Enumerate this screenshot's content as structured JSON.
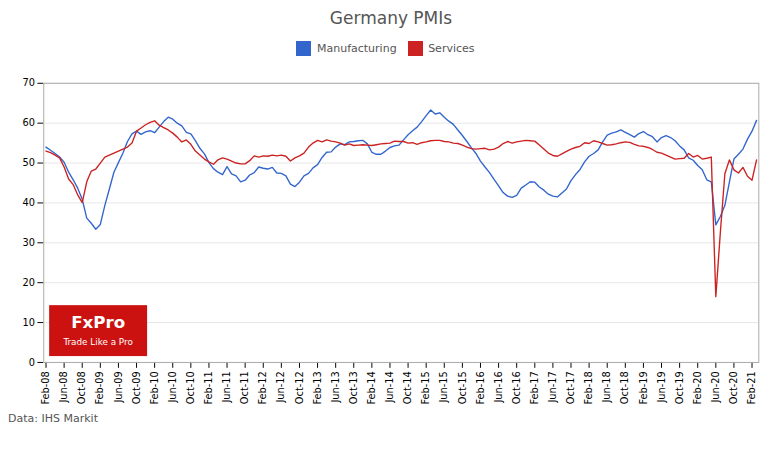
{
  "chart_data": {
    "type": "line",
    "title": "Germany PMIs",
    "caption": "Data: IHS Markit",
    "annotations": [
      "FxPro",
      "Trade Like a Pro"
    ],
    "categories": [
      "Feb-08",
      null,
      null,
      null,
      "Jun-08",
      null,
      null,
      null,
      "Oct-08",
      null,
      null,
      null,
      "Feb-09",
      null,
      null,
      null,
      "Jun-09",
      null,
      null,
      null,
      "Oct-09",
      null,
      null,
      null,
      "Feb-10",
      null,
      null,
      null,
      "Jun-10",
      null,
      null,
      null,
      "Oct-10",
      null,
      null,
      null,
      "Feb-11",
      null,
      null,
      null,
      "Jun-11",
      null,
      null,
      null,
      "Oct-11",
      null,
      null,
      null,
      "Feb-12",
      null,
      null,
      null,
      "Jun-12",
      null,
      null,
      null,
      "Oct-12",
      null,
      null,
      null,
      "Feb-13",
      null,
      null,
      null,
      "Jun-13",
      null,
      null,
      null,
      "Oct-13",
      null,
      null,
      null,
      "Feb-14",
      null,
      null,
      null,
      "Jun-14",
      null,
      null,
      null,
      "Oct-14",
      null,
      null,
      null,
      "Feb-15",
      null,
      null,
      null,
      "Jun-15",
      null,
      null,
      null,
      "Oct-15",
      null,
      null,
      null,
      "Feb-16",
      null,
      null,
      null,
      "Jun-16",
      null,
      null,
      null,
      "Oct-16",
      null,
      null,
      null,
      "Feb-17",
      null,
      null,
      null,
      "Jun-17",
      null,
      null,
      null,
      "Oct-17",
      null,
      null,
      null,
      "Feb-18",
      null,
      null,
      null,
      "Jun-18",
      null,
      null,
      null,
      "Oct-18",
      null,
      null,
      null,
      "Feb-19",
      null,
      null,
      null,
      "Jun-19",
      null,
      null,
      null,
      "Oct-19",
      null,
      null,
      null,
      "Feb-20",
      null,
      null,
      null,
      "Jun-20",
      null,
      null,
      null,
      "Oct-20",
      null,
      null,
      null,
      "Feb-21",
      null
    ],
    "series": [
      {
        "name": "Manufacturing",
        "color": "#3366CC",
        "values": [
          54.0,
          53.2,
          52.4,
          51.5,
          50.2,
          47.7,
          45.8,
          43.7,
          40.9,
          36.2,
          34.9,
          33.4,
          34.6,
          39.4,
          43.5,
          47.7,
          50.1,
          52.5,
          55.4,
          57.3,
          58.0,
          57.2,
          57.8,
          58.1,
          57.6,
          59.0,
          60.4,
          61.5,
          61.0,
          60.0,
          59.3,
          57.7,
          57.3,
          55.6,
          53.7,
          52.3,
          50.1,
          48.6,
          47.7,
          47.1,
          49.1,
          47.3,
          46.8,
          45.3,
          45.7,
          47.0,
          47.6,
          49.0,
          48.7,
          48.5,
          48.9,
          47.5,
          47.4,
          46.8,
          44.7,
          44.1,
          45.2,
          46.8,
          47.4,
          48.8,
          49.6,
          51.4,
          52.7,
          52.8,
          54.0,
          54.8,
          54.6,
          55.3,
          55.4,
          55.6,
          55.7,
          54.8,
          52.7,
          52.2,
          52.2,
          53.0,
          53.9,
          54.3,
          54.5,
          55.8,
          57.1,
          58.1,
          59.0,
          60.4,
          61.9,
          63.3,
          62.3,
          62.6,
          61.5,
          60.5,
          59.7,
          58.3,
          56.9,
          55.4,
          53.8,
          52.4,
          50.5,
          49.0,
          47.6,
          45.9,
          44.3,
          42.6,
          41.7,
          41.4,
          41.9,
          43.7,
          44.5,
          45.3,
          45.2,
          44.0,
          43.2,
          42.2,
          41.7,
          41.5,
          42.5,
          43.5,
          45.6,
          47.1,
          48.4,
          50.3,
          51.7,
          52.4,
          53.3,
          55.3,
          57.0,
          57.5,
          57.8,
          58.3,
          57.7,
          57.1,
          56.5,
          57.4,
          57.9,
          57.1,
          56.6,
          55.3,
          56.4,
          56.9,
          56.4,
          55.6,
          54.3,
          53.3,
          51.3,
          50.7,
          49.4,
          48.3,
          45.8,
          45.3,
          34.5,
          36.6,
          39.4,
          45.2,
          51.0,
          52.2,
          53.5,
          56.0,
          58.0,
          60.7
        ]
      },
      {
        "name": "Services",
        "color": "#CC2222",
        "values": [
          53.0,
          52.6,
          52.0,
          51.3,
          49.0,
          46.0,
          44.6,
          42.0,
          40.1,
          45.3,
          48.0,
          48.5,
          50.0,
          51.5,
          52.0,
          52.5,
          53.0,
          53.5,
          54.0,
          55.0,
          58.0,
          58.8,
          59.6,
          60.2,
          60.6,
          59.5,
          58.9,
          58.3,
          57.5,
          56.5,
          55.3,
          55.8,
          54.7,
          53.0,
          52.0,
          51.0,
          50.3,
          49.7,
          50.8,
          51.3,
          51.0,
          50.5,
          50.0,
          49.8,
          49.8,
          50.6,
          51.8,
          51.5,
          51.8,
          51.7,
          52.0,
          51.8,
          52.0,
          51.7,
          50.5,
          51.3,
          51.8,
          52.5,
          54.0,
          55.0,
          55.7,
          55.3,
          55.8,
          55.5,
          55.3,
          55.0,
          54.5,
          54.8,
          54.4,
          54.5,
          54.6,
          54.5,
          54.4,
          54.6,
          54.8,
          54.9,
          55.0,
          55.5,
          55.4,
          55.4,
          55.0,
          55.1,
          54.7,
          55.1,
          55.3,
          55.6,
          55.7,
          55.7,
          55.4,
          55.3,
          55.0,
          54.9,
          54.5,
          54.0,
          53.6,
          53.5,
          53.6,
          53.7,
          53.3,
          53.5,
          54.0,
          54.9,
          55.4,
          55.0,
          55.3,
          55.5,
          55.7,
          55.6,
          55.5,
          54.5,
          53.5,
          52.5,
          51.9,
          51.7,
          52.3,
          52.9,
          53.5,
          53.9,
          54.2,
          55.1,
          54.9,
          55.6,
          55.3,
          54.9,
          54.5,
          54.6,
          54.8,
          55.1,
          55.3,
          55.2,
          54.7,
          54.3,
          54.2,
          53.9,
          53.4,
          52.7,
          52.5,
          52.0,
          51.5,
          51.0,
          51.1,
          51.2,
          52.4,
          51.5,
          51.9,
          51.0,
          51.2,
          51.5,
          16.5,
          32.6,
          47.3,
          50.8,
          48.3,
          47.5,
          48.9,
          46.7,
          45.7,
          50.8
        ]
      }
    ],
    "ylim": [
      0,
      70
    ],
    "yticks": [
      0,
      10,
      20,
      30,
      40,
      50,
      60,
      70
    ],
    "grid": true,
    "legend": "top"
  }
}
